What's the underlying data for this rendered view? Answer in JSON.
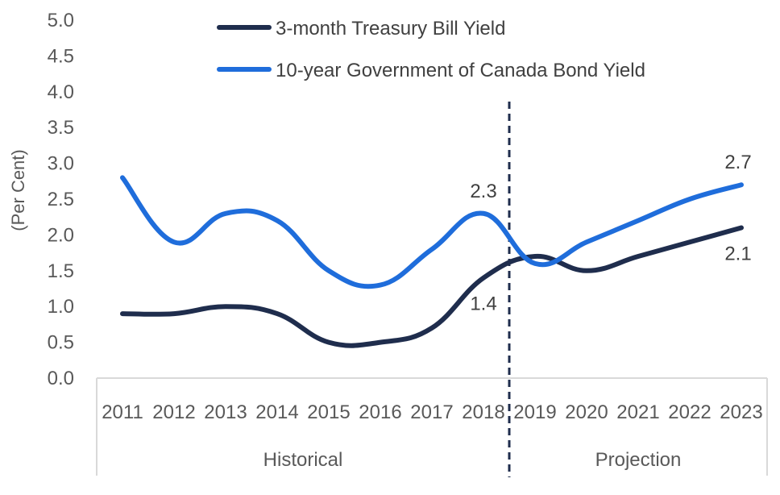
{
  "chart_data": {
    "type": "line",
    "title": "",
    "ylabel": "(Per Cent)",
    "xlabel": "",
    "ylim": [
      0,
      5
    ],
    "y_ticks": [
      "0.0",
      "0.5",
      "1.0",
      "1.5",
      "2.0",
      "2.5",
      "3.0",
      "3.5",
      "4.0",
      "4.5",
      "5.0"
    ],
    "categories": [
      "2011",
      "2012",
      "2013",
      "2014",
      "2015",
      "2016",
      "2017",
      "2018",
      "2019",
      "2020",
      "2021",
      "2022",
      "2023"
    ],
    "groups": [
      {
        "label": "Historical",
        "from": "2011",
        "to": "2018"
      },
      {
        "label": "Projection",
        "from": "2019",
        "to": "2023"
      }
    ],
    "divider_between": [
      "2018",
      "2019"
    ],
    "grid": false,
    "legend_position": "top",
    "series": [
      {
        "name": "3-month Treasury Bill Yield",
        "color": "#1f2d4d",
        "values": [
          0.9,
          0.9,
          1.0,
          0.9,
          0.5,
          0.5,
          0.7,
          1.4,
          1.7,
          1.5,
          1.7,
          1.9,
          2.1
        ]
      },
      {
        "name": "10-year Government of Canada Bond Yield",
        "color": "#1f6ddb",
        "values": [
          2.8,
          1.9,
          2.3,
          2.2,
          1.5,
          1.3,
          1.8,
          2.3,
          1.6,
          1.9,
          2.2,
          2.5,
          2.7
        ]
      }
    ],
    "data_labels": [
      {
        "series": 1,
        "category": "2018",
        "text": "2.3",
        "position": "above"
      },
      {
        "series": 0,
        "category": "2018",
        "text": "1.4",
        "position": "below"
      },
      {
        "series": 1,
        "category": "2023",
        "text": "2.7",
        "position": "above"
      },
      {
        "series": 0,
        "category": "2023",
        "text": "2.1",
        "position": "below"
      }
    ]
  }
}
